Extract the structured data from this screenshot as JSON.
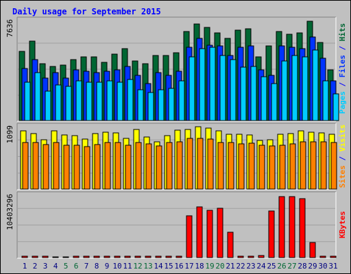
{
  "title": "Daily usage for September 2015",
  "colors": {
    "background": "#c0c0c0",
    "title": "#0000ff",
    "hits": "#006633",
    "files": "#0033ff",
    "pages": "#00ccff",
    "visits": "#ffff00",
    "sites": "#ff8000",
    "kbytes": "#ff0000",
    "weekend_label": "#006633",
    "weekday_label": "#000080",
    "separator": "#0000ff",
    "grid": "#a0a0a0"
  },
  "chart_data": [
    {
      "type": "bar",
      "panel": "hits-files-pages",
      "ytick": "7636",
      "ymax": 7636,
      "right_labels": [
        {
          "text": "Pages",
          "color": "#00ccff"
        },
        {
          "text": " / ",
          "color": "#0000ff"
        },
        {
          "text": "Files",
          "color": "#0033ff"
        },
        {
          "text": " / ",
          "color": "#0000ff"
        },
        {
          "text": "Hits",
          "color": "#006633"
        }
      ],
      "categories": [
        "1",
        "2",
        "3",
        "4",
        "5",
        "6",
        "7",
        "8",
        "9",
        "10",
        "11",
        "12",
        "13",
        "14",
        "15",
        "16",
        "17",
        "18",
        "19",
        "20",
        "21",
        "22",
        "23",
        "24",
        "25",
        "26",
        "27",
        "28",
        "29",
        "30",
        "31"
      ],
      "series": [
        {
          "name": "Hits",
          "values": [
            5200,
            6000,
            4300,
            4100,
            4200,
            4600,
            4800,
            4800,
            4400,
            5000,
            5400,
            4500,
            4300,
            4900,
            4900,
            5100,
            6700,
            7300,
            7000,
            6600,
            6200,
            6800,
            6900,
            4800,
            5600,
            6700,
            6500,
            6600,
            7500,
            5900,
            3800
          ]
        },
        {
          "name": "Files",
          "values": [
            3900,
            4600,
            3200,
            3600,
            3200,
            3800,
            3700,
            3600,
            3700,
            3800,
            4100,
            3400,
            2800,
            3600,
            3400,
            3700,
            5500,
            6200,
            5700,
            5600,
            4900,
            5500,
            5600,
            3800,
            3400,
            5600,
            5500,
            5400,
            6300,
            4700,
            3000
          ]
        },
        {
          "name": "Pages",
          "values": [
            2900,
            3600,
            2200,
            2700,
            2600,
            3000,
            2900,
            2900,
            3000,
            2900,
            3100,
            2300,
            2100,
            2300,
            2400,
            3000,
            4800,
            5400,
            5500,
            4900,
            4600,
            4000,
            4100,
            3300,
            2800,
            4500,
            4900,
            4800,
            5300,
            3000,
            2000
          ]
        }
      ]
    },
    {
      "type": "bar",
      "panel": "visits-sites",
      "ytick": "1099",
      "ymax": 1099,
      "right_labels": [
        {
          "text": "Sites",
          "color": "#ff8000"
        },
        {
          "text": " / ",
          "color": "#0000ff"
        },
        {
          "text": "Visits",
          "color": "#ffff00"
        }
      ],
      "categories": [
        "1",
        "2",
        "3",
        "4",
        "5",
        "6",
        "7",
        "8",
        "9",
        "10",
        "11",
        "12",
        "13",
        "14",
        "15",
        "16",
        "17",
        "18",
        "19",
        "20",
        "21",
        "22",
        "23",
        "24",
        "25",
        "26",
        "27",
        "28",
        "29",
        "30",
        "31"
      ],
      "series": [
        {
          "name": "Visits",
          "values": [
            1000,
            960,
            850,
            1010,
            930,
            920,
            860,
            960,
            980,
            970,
            880,
            1030,
            900,
            820,
            920,
            1020,
            1030,
            1070,
            1050,
            1000,
            940,
            950,
            930,
            840,
            850,
            940,
            960,
            1000,
            980,
            970,
            940
          ]
        },
        {
          "name": "Sites",
          "values": [
            800,
            800,
            770,
            800,
            760,
            760,
            730,
            770,
            800,
            800,
            760,
            800,
            780,
            740,
            800,
            810,
            880,
            880,
            860,
            800,
            800,
            780,
            790,
            760,
            740,
            760,
            780,
            820,
            820,
            820,
            800
          ]
        }
      ]
    },
    {
      "type": "bar",
      "panel": "kbytes",
      "ytick": "10403296",
      "ymax": 10403296,
      "right_labels": [
        {
          "text": "KBytes",
          "color": "#ff0000"
        }
      ],
      "categories": [
        "1",
        "2",
        "3",
        "4",
        "5",
        "6",
        "7",
        "8",
        "9",
        "10",
        "11",
        "12",
        "13",
        "14",
        "15",
        "16",
        "17",
        "18",
        "19",
        "20",
        "21",
        "22",
        "23",
        "24",
        "25",
        "26",
        "27",
        "28",
        "29",
        "30",
        "31"
      ],
      "series": [
        {
          "name": "KBytes",
          "values": [
            200000,
            200000,
            200000,
            120000,
            100000,
            200000,
            200000,
            200000,
            200000,
            200000,
            200000,
            200000,
            200000,
            200000,
            200000,
            200000,
            6800000,
            8300000,
            7700000,
            8000000,
            4100000,
            260000,
            260000,
            300000,
            7600000,
            10000000,
            10000000,
            9600000,
            2500000,
            200000,
            200000
          ]
        }
      ]
    }
  ],
  "weekend_days": [
    "5",
    "6",
    "12",
    "13",
    "19",
    "20",
    "26",
    "27"
  ]
}
